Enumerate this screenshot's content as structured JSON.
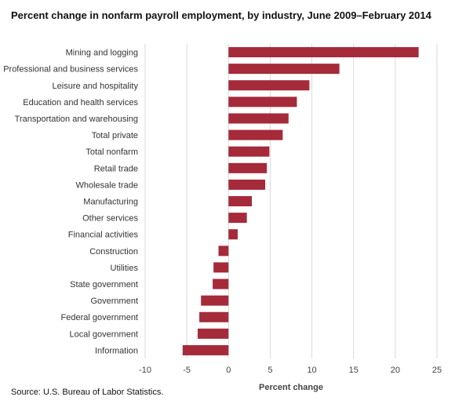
{
  "chart_data": {
    "type": "bar",
    "orientation": "horizontal",
    "title": "Percent change in nonfarm payroll employment, by industry, June 2009–February  2014",
    "xlabel": "Percent change",
    "ylabel": "",
    "source": "Source: U.S. Bureau of Labor Statistics.",
    "categories": [
      "Mining and logging",
      "Professional and business services",
      "Leisure and hospitality",
      "Education and health services",
      "Transportation and warehousing",
      "Total private",
      "Total nonfarm",
      "Retail trade",
      "Wholesale trade",
      "Manufacturing",
      "Other services",
      "Financial activities",
      "Construction",
      "Utilities",
      "State government",
      "Government",
      "Federal government",
      "Local government",
      "Information"
    ],
    "values": [
      22.8,
      13.3,
      9.7,
      8.2,
      7.2,
      6.5,
      4.9,
      4.6,
      4.4,
      2.8,
      2.2,
      1.1,
      -1.2,
      -1.8,
      -1.9,
      -3.3,
      -3.5,
      -3.7,
      -5.5
    ],
    "xlim": [
      -10,
      25
    ],
    "xticks": [
      "-10",
      "-5",
      "0",
      "5",
      "10",
      "15",
      "20",
      "25"
    ],
    "xtick_values": [
      -10,
      -5,
      0,
      5,
      10,
      15,
      20,
      25
    ],
    "grid": true,
    "legend": "none",
    "bar_color": "#a52a3a",
    "grid_color": "#d9d9d9"
  }
}
